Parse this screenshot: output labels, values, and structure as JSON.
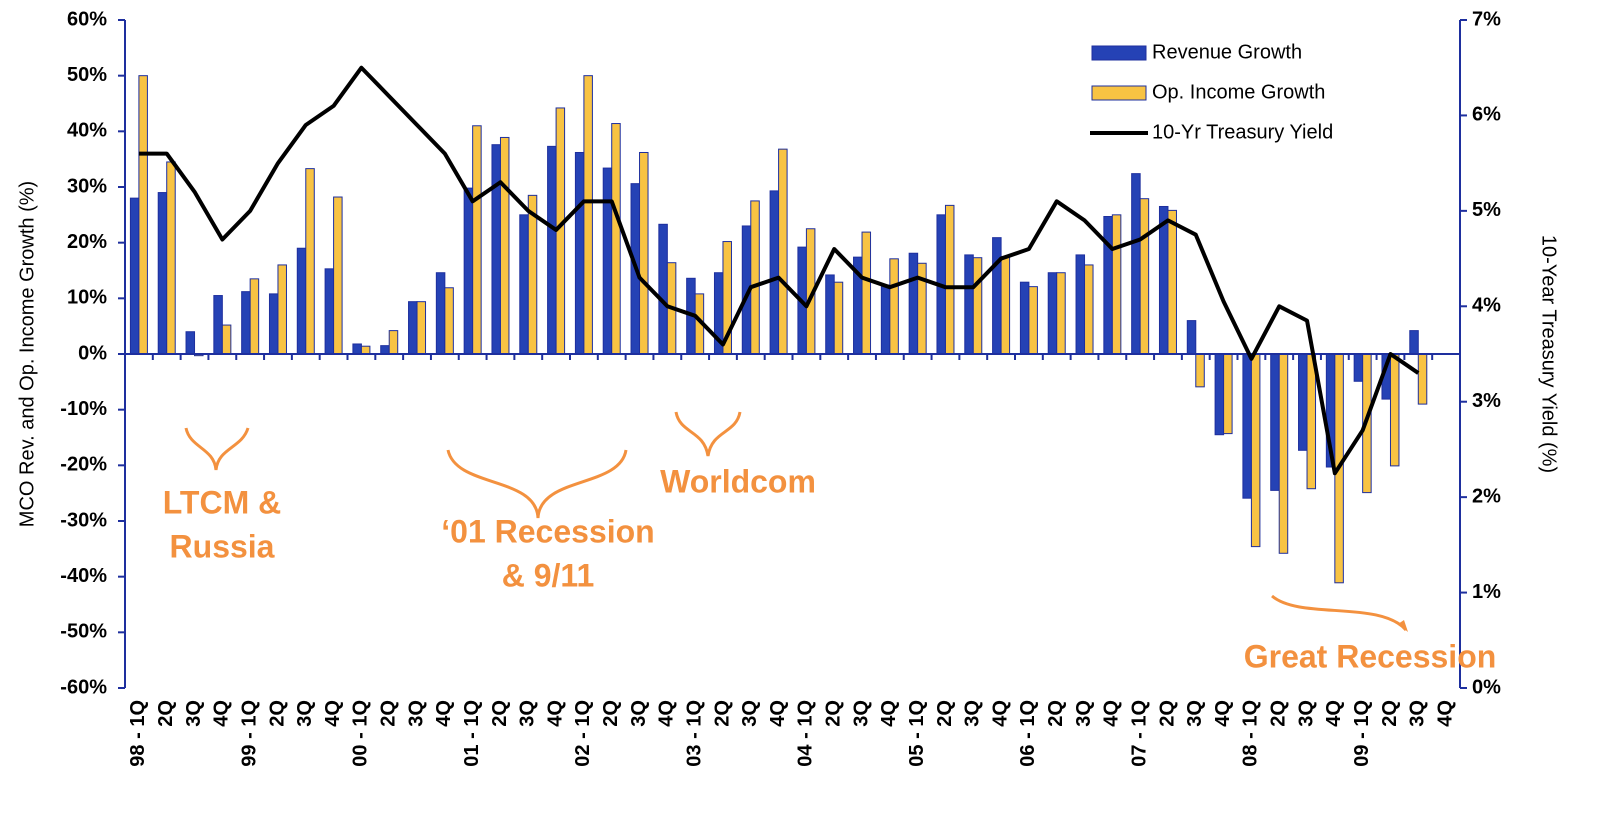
{
  "chart_data": {
    "type": "bar_line",
    "y_label": "MCO Rev. and Op. Income Growth (%)",
    "y2_label": "10-Year Treasury Yield (%)",
    "categories": [
      "98 - 1Q",
      "2Q",
      "3Q",
      "4Q",
      "99 - 1Q",
      "2Q",
      "3Q",
      "4Q",
      "00 - 1Q",
      "2Q",
      "3Q",
      "4Q",
      "01 - 1Q",
      "2Q",
      "3Q",
      "4Q",
      "02 - 1Q",
      "2Q",
      "3Q",
      "4Q",
      "03 - 1Q",
      "2Q",
      "3Q",
      "4Q",
      "04 - 1Q",
      "2Q",
      "3Q",
      "4Q",
      "05 - 1Q",
      "2Q",
      "3Q",
      "4Q",
      "06 - 1Q",
      "2Q",
      "3Q",
      "4Q",
      "07 - 1Q",
      "2Q",
      "3Q",
      "4Q",
      "08 - 1Q",
      "2Q",
      "3Q",
      "4Q",
      "09 - 1Q",
      "2Q",
      "3Q",
      "4Q"
    ],
    "series": [
      {
        "name": "Revenue Growth",
        "type": "bar",
        "color": "#2542b5",
        "values": [
          28,
          29,
          4,
          10.5,
          11.2,
          10.8,
          19,
          15.3,
          1.8,
          1.5,
          9.4,
          14.6,
          29.8,
          37.6,
          25,
          37.3,
          36.2,
          33.4,
          30.6,
          23.3,
          13.6,
          14.6,
          23,
          29.3,
          19.2,
          14.2,
          17.4,
          12.4,
          18.1,
          25,
          17.8,
          20.9,
          12.9,
          14.6,
          17.8,
          24.7,
          32.4,
          26.5,
          6,
          -14.5,
          -25.9,
          -24.5,
          -17.3,
          -20.3,
          -4.9,
          -8.1,
          4.2,
          null
        ]
      },
      {
        "name": "Op. Income Growth",
        "type": "bar",
        "color": "#f8c343",
        "values": [
          50,
          34.5,
          -0.3,
          5.2,
          13.5,
          16,
          33.3,
          28.2,
          1.4,
          4.2,
          9.4,
          11.9,
          41,
          38.9,
          28.5,
          44.2,
          50,
          41.4,
          36.2,
          16.4,
          10.8,
          20.2,
          27.5,
          36.8,
          22.5,
          12.9,
          21.9,
          17.1,
          16.3,
          26.7,
          17.3,
          17.5,
          12.1,
          14.6,
          16,
          25,
          27.9,
          25.8,
          -5.9,
          -14.3,
          -34.6,
          -35.8,
          -24.2,
          -41.1,
          -24.9,
          -20.1,
          -9,
          null
        ]
      },
      {
        "name": "10-Yr Treasury Yield",
        "type": "line",
        "axis": "y2",
        "color": "#000000",
        "values": [
          5.6,
          5.6,
          5.2,
          4.7,
          5.0,
          5.5,
          5.9,
          6.1,
          6.5,
          6.2,
          5.9,
          5.6,
          5.1,
          5.3,
          5.0,
          4.8,
          5.1,
          5.1,
          4.3,
          4.0,
          3.9,
          3.6,
          4.2,
          4.3,
          4.0,
          4.6,
          4.3,
          4.2,
          4.3,
          4.2,
          4.2,
          4.5,
          4.6,
          5.1,
          4.9,
          4.6,
          4.7,
          4.9,
          4.75,
          4.05,
          3.45,
          4.0,
          3.85,
          2.25,
          2.7,
          3.5,
          3.3,
          null
        ]
      }
    ],
    "ylim": [
      -60,
      60
    ],
    "yticks": [
      {
        "value": -60,
        "label": "-60%"
      },
      {
        "value": -50,
        "label": "-50%"
      },
      {
        "value": -40,
        "label": "-40%"
      },
      {
        "value": -30,
        "label": "-30%"
      },
      {
        "value": -20,
        "label": "-20%"
      },
      {
        "value": -10,
        "label": "-10%"
      },
      {
        "value": 0,
        "label": "0%"
      },
      {
        "value": 10,
        "label": "10%"
      },
      {
        "value": 20,
        "label": "20%"
      },
      {
        "value": 30,
        "label": "30%"
      },
      {
        "value": 40,
        "label": "40%"
      },
      {
        "value": 50,
        "label": "50%"
      },
      {
        "value": 60,
        "label": "60%"
      }
    ],
    "y2lim": [
      0,
      7
    ],
    "y2ticks": [
      {
        "value": 0,
        "label": "0%"
      },
      {
        "value": 1,
        "label": "1%"
      },
      {
        "value": 2,
        "label": "2%"
      },
      {
        "value": 3,
        "label": "3%"
      },
      {
        "value": 4,
        "label": "4%"
      },
      {
        "value": 5,
        "label": "5%"
      },
      {
        "value": 6,
        "label": "6%"
      },
      {
        "value": 7,
        "label": "7%"
      }
    ],
    "legend": "top-right",
    "annotations": [
      {
        "lines": [
          "LTCM &",
          "Russia"
        ]
      },
      {
        "lines": [
          "‘01 Recession",
          "& 9/11"
        ]
      },
      {
        "lines": [
          "Worldcom"
        ]
      },
      {
        "lines": [
          "Great Recession"
        ]
      }
    ]
  }
}
